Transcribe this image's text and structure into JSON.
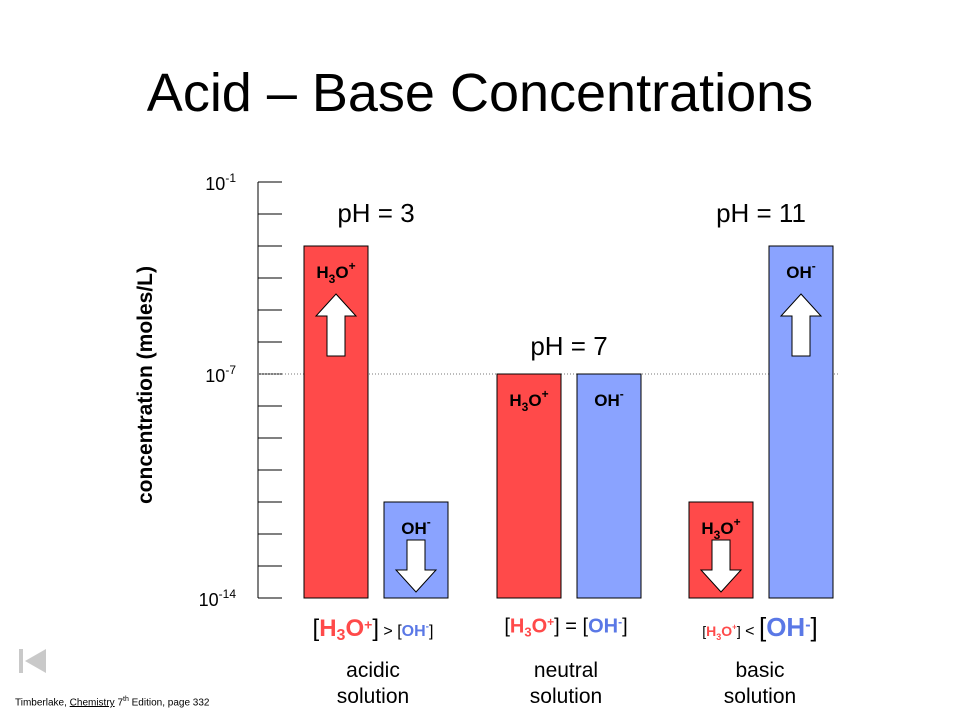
{
  "title": "Acid – Base Concentrations",
  "chart_data": {
    "type": "bar",
    "ylabel": "concentration (moles/L)",
    "y_scale": "log",
    "y_ticks": [
      {
        "label": "10",
        "exp": "-1",
        "value": 0.1
      },
      {
        "label": "10",
        "exp": "-7",
        "value": 1e-07
      },
      {
        "label": "10",
        "exp": "-14",
        "value": 1e-14
      }
    ],
    "ylim": [
      1e-14,
      0.1
    ],
    "neutral_line": 1e-07,
    "groups": [
      {
        "ph_label": "pH = 3",
        "caption_line1": "acidic",
        "caption_line2": "solution",
        "relation": {
          "left": "[H",
          "left_sub": "3",
          "left_sup": "+",
          "op": "] >",
          "right": "[OH",
          "right_sup": "-"
        },
        "bars": [
          {
            "name": "H3O+",
            "text": "H",
            "sub": "3",
            "tail": "O",
            "sup": "+",
            "value": 0.001,
            "color": "#ff4a4a",
            "arrow": "up"
          },
          {
            "name": "OH-",
            "text": "OH",
            "sub": "",
            "tail": "",
            "sup": "-",
            "value": 1e-11,
            "color": "#8aa3ff",
            "arrow": "down"
          }
        ]
      },
      {
        "ph_label": "pH = 7",
        "caption_line1": "neutral",
        "caption_line2": "solution",
        "relation": {
          "left": "[H",
          "left_sub": "3",
          "left_sup": "+",
          "op": "] =",
          "right": "[OH",
          "right_sup": "-"
        },
        "bars": [
          {
            "name": "H3O+",
            "text": "H",
            "sub": "3",
            "tail": "O",
            "sup": "+",
            "value": 1e-07,
            "color": "#ff4a4a",
            "arrow": "none"
          },
          {
            "name": "OH-",
            "text": "OH",
            "sub": "",
            "tail": "",
            "sup": "-",
            "value": 1e-07,
            "color": "#8aa3ff",
            "arrow": "none"
          }
        ]
      },
      {
        "ph_label": "pH = 11",
        "caption_line1": "basic",
        "caption_line2": "solution",
        "relation": {
          "left": "[H",
          "left_sub": "3",
          "left_sup": "+",
          "op": "] <",
          "right": "[OH",
          "right_sup": "-"
        },
        "bars": [
          {
            "name": "H3O+",
            "text": "H",
            "sub": "3",
            "tail": "O",
            "sup": "+",
            "value": 1e-11,
            "color": "#ff4a4a",
            "arrow": "down"
          },
          {
            "name": "OH-",
            "text": "OH",
            "sub": "",
            "tail": "",
            "sup": "-",
            "value": 0.001,
            "color": "#8aa3ff",
            "arrow": "up"
          }
        ]
      }
    ]
  },
  "citation": {
    "author": "Timberlake, ",
    "book": "Chemistry",
    "edition_num": " 7",
    "edition_sup": "th",
    "rest": " Edition, page 332"
  },
  "nav": {
    "icon": "first-slide-icon"
  }
}
